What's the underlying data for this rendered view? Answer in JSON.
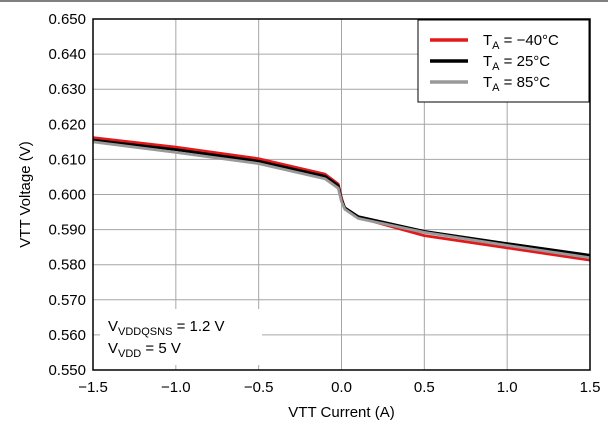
{
  "chart_data": {
    "type": "line",
    "title": "",
    "xlabel": "VTT Current (A)",
    "ylabel": "VTT Voltage (V)",
    "xlim": [
      -1.5,
      1.5
    ],
    "ylim": [
      0.55,
      0.65
    ],
    "x_ticks": [
      -1.5,
      -1.0,
      -0.5,
      0.0,
      0.5,
      1.0,
      1.5
    ],
    "x_tick_labels": [
      "−1.5",
      "−1.0",
      "−0.5",
      "0.0",
      "0.5",
      "1.0",
      "1.5"
    ],
    "y_ticks": [
      0.55,
      0.56,
      0.57,
      0.58,
      0.59,
      0.6,
      0.61,
      0.62,
      0.63,
      0.64,
      0.65
    ],
    "y_tick_labels": [
      "0.550",
      "0.560",
      "0.570",
      "0.580",
      "0.590",
      "0.600",
      "0.610",
      "0.620",
      "0.630",
      "0.640",
      "0.650"
    ],
    "grid": true,
    "legend_position": "top-right",
    "series": [
      {
        "legend": {
          "main": "T",
          "sub": "A",
          "rest": " = −40°C"
        },
        "color": "#e31a1c",
        "x": [
          -1.5,
          -1.0,
          -0.5,
          -0.1,
          -0.02,
          0.0,
          0.02,
          0.1,
          0.5,
          1.0,
          1.5
        ],
        "y": [
          0.6162,
          0.6135,
          0.6102,
          0.6058,
          0.603,
          0.599,
          0.596,
          0.5935,
          0.5883,
          0.5848,
          0.5813
        ]
      },
      {
        "legend": {
          "main": "T",
          "sub": "A",
          "rest": " = 25°C"
        },
        "color": "#000000",
        "x": [
          -1.5,
          -1.0,
          -0.5,
          -0.1,
          -0.02,
          0.0,
          0.02,
          0.1,
          0.5,
          1.0,
          1.5
        ],
        "y": [
          0.6155,
          0.6128,
          0.6095,
          0.6052,
          0.6025,
          0.5985,
          0.5962,
          0.5937,
          0.5895,
          0.586,
          0.5827
        ]
      },
      {
        "legend": {
          "main": "T",
          "sub": "A",
          "rest": " = 85°C"
        },
        "color": "#999999",
        "x": [
          -1.5,
          -1.0,
          -0.5,
          -0.1,
          -0.02,
          0.0,
          0.02,
          0.1,
          0.5,
          1.0,
          1.5
        ],
        "y": [
          0.615,
          0.612,
          0.6088,
          0.6045,
          0.6018,
          0.598,
          0.5958,
          0.5932,
          0.5892,
          0.5855,
          0.582
        ]
      }
    ],
    "annotations": [
      {
        "main": "V",
        "sub": "VDDQSNS",
        "rest": " = 1.2 V"
      },
      {
        "main": "V",
        "sub": "VDD",
        "rest": " = 5 V"
      }
    ]
  }
}
